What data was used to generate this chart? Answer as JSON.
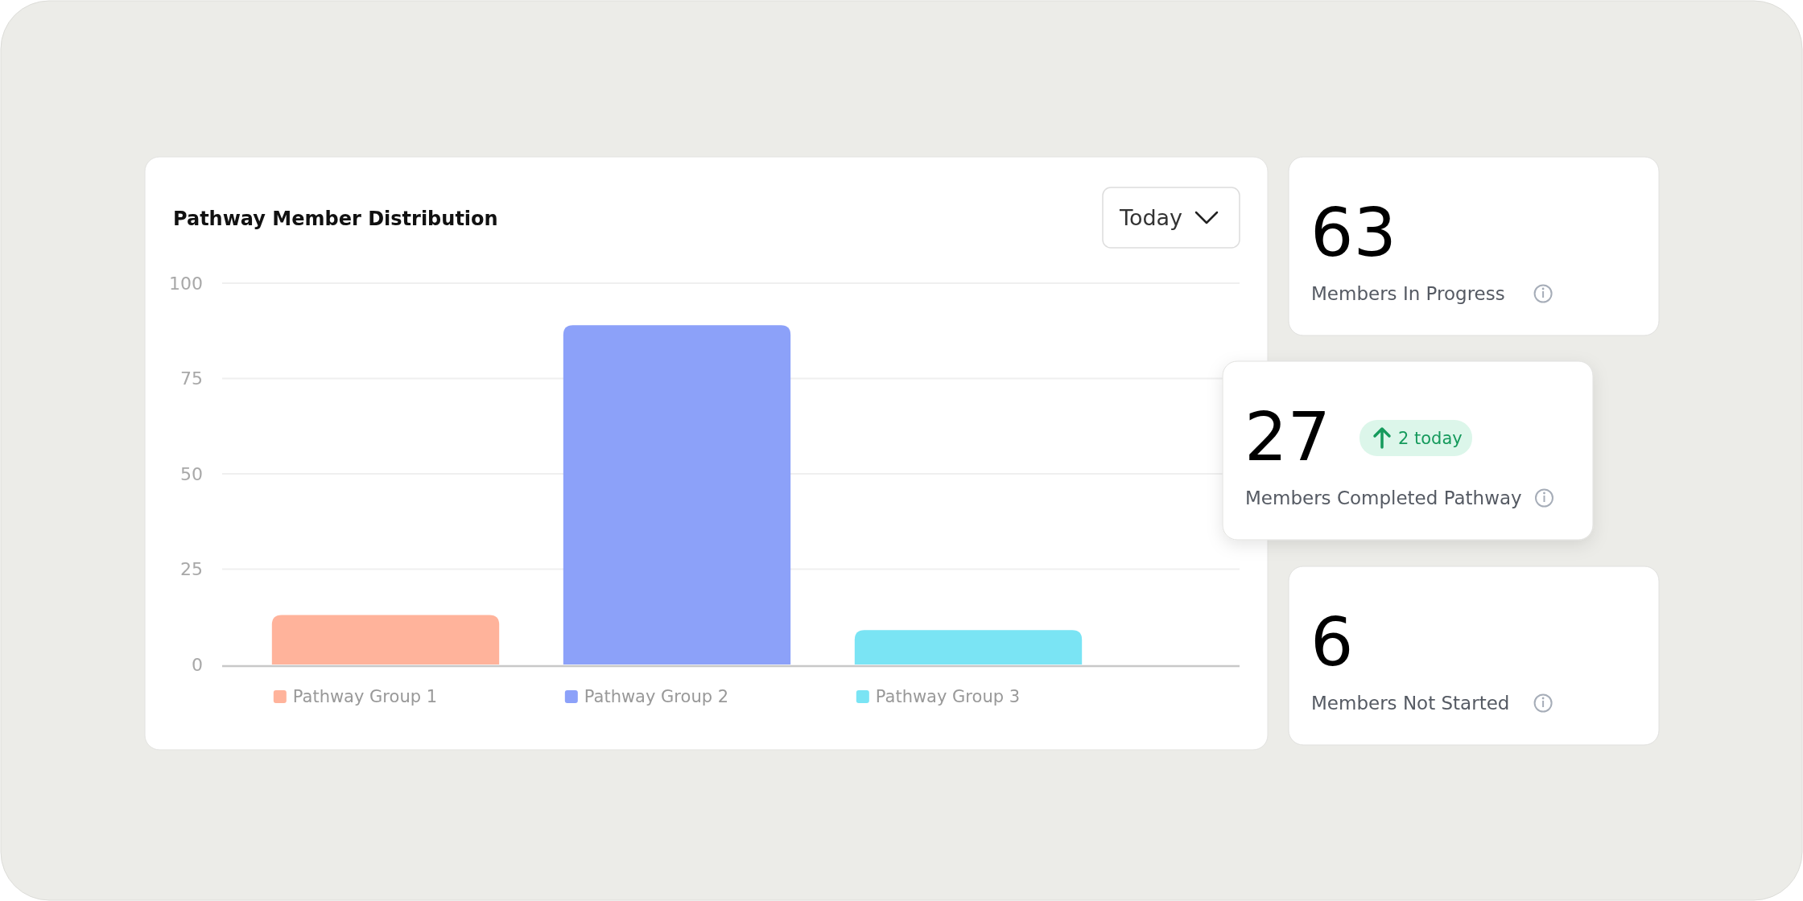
{
  "chart_data": [
    {
      "type": "bar",
      "title": "Pathway Member Distribution",
      "categories": [
        null
      ],
      "series": [
        {
          "name": "Pathway Group 1",
          "color": "#ffb39b",
          "values": [
            13
          ]
        },
        {
          "name": "Pathway Group 2",
          "color": "#8ca1f9",
          "values": [
            89
          ]
        },
        {
          "name": "Pathway Group 3",
          "color": "#7ae4f4",
          "values": [
            9
          ]
        }
      ],
      "ylim": [
        0,
        100
      ],
      "yticks": [
        0,
        25,
        50,
        75,
        100
      ],
      "grid": "y",
      "legend": "bottom",
      "tick_labels": "y",
      "annotations": [
        "Today"
      ]
    },
    {
      "type": "other",
      "title": "Members In Progress",
      "values": [
        63
      ],
      "data_labels": true
    },
    {
      "type": "other",
      "title": "Members Completed Pathway",
      "values": [
        27
      ],
      "data_labels": true,
      "annotations": [
        "2 today"
      ]
    },
    {
      "type": "other",
      "title": "Members Not Started",
      "values": [
        6
      ],
      "data_labels": true
    }
  ]
}
